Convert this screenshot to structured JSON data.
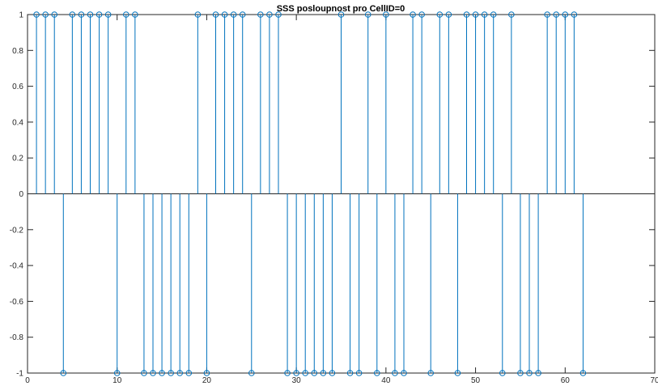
{
  "chart_data": {
    "type": "stem",
    "title": "SSS posloupnost pro CellID=0",
    "xlabel": "",
    "ylabel": "",
    "xlim": [
      0,
      70
    ],
    "ylim": [
      -1,
      1
    ],
    "xticks": [
      0,
      10,
      20,
      30,
      40,
      50,
      60,
      70
    ],
    "yticks": [
      -1,
      -0.8,
      -0.6,
      -0.4,
      -0.2,
      0,
      0.2,
      0.4,
      0.6,
      0.8,
      1
    ],
    "xtick_labels": [
      "0",
      "10",
      "20",
      "30",
      "40",
      "50",
      "60",
      "70"
    ],
    "ytick_labels": [
      "-1",
      "-0.8",
      "-0.6",
      "-0.4",
      "-0.2",
      "0",
      "0.2",
      "0.4",
      "0.6",
      "0.8",
      "1"
    ],
    "grid": false,
    "series": [
      {
        "color": "#0072BD",
        "x": [
          1,
          2,
          3,
          4,
          5,
          6,
          7,
          8,
          9,
          10,
          11,
          12,
          13,
          14,
          15,
          16,
          17,
          18,
          19,
          20,
          21,
          22,
          23,
          24,
          25,
          26,
          27,
          28,
          29,
          30,
          31,
          32,
          33,
          34,
          35,
          36,
          37,
          38,
          39,
          40,
          41,
          42,
          43,
          44,
          45,
          46,
          47,
          48,
          49,
          50,
          51,
          52,
          53,
          54,
          55,
          56,
          57,
          58,
          59,
          60,
          61,
          62
        ],
        "y": [
          1,
          1,
          1,
          -1,
          1,
          1,
          1,
          1,
          1,
          -1,
          1,
          1,
          -1,
          -1,
          -1,
          -1,
          -1,
          -1,
          1,
          -1,
          1,
          1,
          1,
          1,
          -1,
          1,
          1,
          1,
          -1,
          -1,
          -1,
          -1,
          -1,
          -1,
          1,
          -1,
          -1,
          1,
          -1,
          1,
          -1,
          -1,
          1,
          1,
          -1,
          1,
          1,
          -1,
          1,
          1,
          1,
          1,
          -1,
          1,
          -1,
          -1,
          -1,
          1,
          1,
          1,
          1,
          -1
        ]
      }
    ]
  }
}
